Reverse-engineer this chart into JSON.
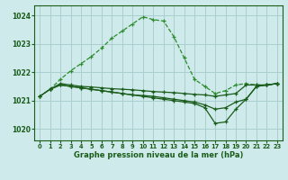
{
  "title": "Graphe pression niveau de la mer (hPa)",
  "background_color": "#ceeaea",
  "grid_color": "#aacece",
  "line_color_dark": "#1a5c1a",
  "line_color_light": "#2e8b2e",
  "xlim": [
    -0.5,
    23.5
  ],
  "ylim": [
    1019.6,
    1024.35
  ],
  "yticks": [
    1020,
    1021,
    1022,
    1023,
    1024
  ],
  "xticks": [
    0,
    1,
    2,
    3,
    4,
    5,
    6,
    7,
    8,
    9,
    10,
    11,
    12,
    13,
    14,
    15,
    16,
    17,
    18,
    19,
    20,
    21,
    22,
    23
  ],
  "s1_x": [
    0,
    1,
    2,
    3,
    4,
    5,
    6,
    7,
    8,
    9,
    10,
    11,
    12,
    13,
    14,
    15,
    16,
    17,
    18,
    19,
    20,
    21,
    22,
    23
  ],
  "s1_y": [
    1021.15,
    1021.4,
    1021.75,
    1022.05,
    1022.3,
    1022.55,
    1022.85,
    1023.2,
    1023.45,
    1023.7,
    1023.95,
    1023.85,
    1023.8,
    1023.25,
    1022.5,
    1021.75,
    1021.5,
    1021.25,
    1021.35,
    1021.55,
    1021.6,
    1021.55,
    1021.55,
    1021.6
  ],
  "s2_x": [
    0,
    1,
    2,
    3,
    4,
    5,
    6,
    7,
    8,
    9,
    10,
    11,
    12,
    13,
    14,
    15,
    16,
    17,
    18,
    19,
    20,
    21,
    22,
    23
  ],
  "s2_y": [
    1021.15,
    1021.4,
    1021.6,
    1021.55,
    1021.5,
    1021.48,
    1021.45,
    1021.42,
    1021.4,
    1021.38,
    1021.35,
    1021.32,
    1021.3,
    1021.28,
    1021.25,
    1021.22,
    1021.2,
    1021.15,
    1021.2,
    1021.25,
    1021.55,
    1021.55,
    1021.55,
    1021.6
  ],
  "s3_x": [
    0,
    1,
    2,
    3,
    4,
    5,
    6,
    7,
    8,
    9,
    10,
    11,
    12,
    13,
    14,
    15,
    16,
    17,
    18,
    19,
    20,
    21,
    22,
    23
  ],
  "s3_y": [
    1021.15,
    1021.4,
    1021.55,
    1021.5,
    1021.45,
    1021.4,
    1021.35,
    1021.3,
    1021.25,
    1021.2,
    1021.18,
    1021.15,
    1021.1,
    1021.05,
    1021.0,
    1020.95,
    1020.85,
    1020.7,
    1020.75,
    1020.95,
    1021.05,
    1021.5,
    1021.55,
    1021.6
  ],
  "s4_x": [
    1,
    2,
    3,
    4,
    5,
    6,
    7,
    8,
    9,
    10,
    11,
    12,
    13,
    14,
    15,
    16,
    17,
    18,
    19,
    20,
    21,
    22,
    23
  ],
  "s4_y": [
    1021.4,
    1021.55,
    1021.5,
    1021.45,
    1021.4,
    1021.35,
    1021.3,
    1021.25,
    1021.2,
    1021.15,
    1021.1,
    1021.05,
    1021.0,
    1020.95,
    1020.9,
    1020.75,
    1020.2,
    1020.25,
    1020.7,
    1021.05,
    1021.5,
    1021.55,
    1021.6
  ]
}
